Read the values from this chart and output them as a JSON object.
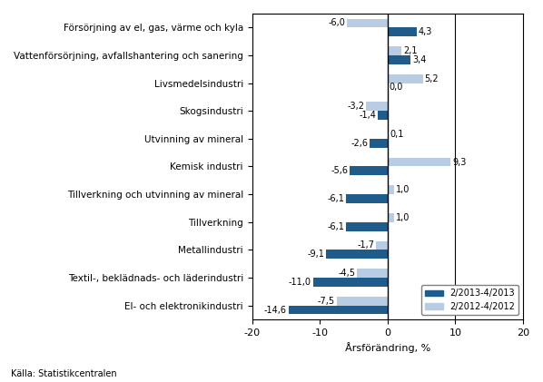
{
  "categories": [
    "Försörjning av el, gas, värme och kyla",
    "Vattenförsörjning, avfallshantering och sanering",
    "Livsmedelsindustri",
    "Skogsindustri",
    "Utvinning av mineral",
    "Kemisk industri",
    "Tillverkning och utvinning av mineral",
    "Tillverkning",
    "Metallindustri",
    "Textil-, beklädnads- och läderindustri",
    "El- och elektronikindustri"
  ],
  "series1_label": "2/2013-4/2013",
  "series2_label": "2/2012-4/2012",
  "series1_values": [
    4.3,
    3.4,
    0.0,
    -1.4,
    -2.6,
    -5.6,
    -6.1,
    -6.1,
    -9.1,
    -11.0,
    -14.6
  ],
  "series2_values": [
    -6.0,
    2.1,
    5.2,
    -3.2,
    0.1,
    9.3,
    1.0,
    1.0,
    -1.7,
    -4.5,
    -7.5
  ],
  "series1_color": "#1F5C8B",
  "series2_color": "#B8CCE4",
  "xlim": [
    -20,
    20
  ],
  "xticks": [
    -20,
    -10,
    0,
    10,
    20
  ],
  "xlabel": "Årsförändring, %",
  "source": "Källa: Statistikcentralen",
  "bar_height": 0.32,
  "label_fontsize": 7.5,
  "tick_fontsize": 8.0,
  "value_fontsize": 7.0
}
